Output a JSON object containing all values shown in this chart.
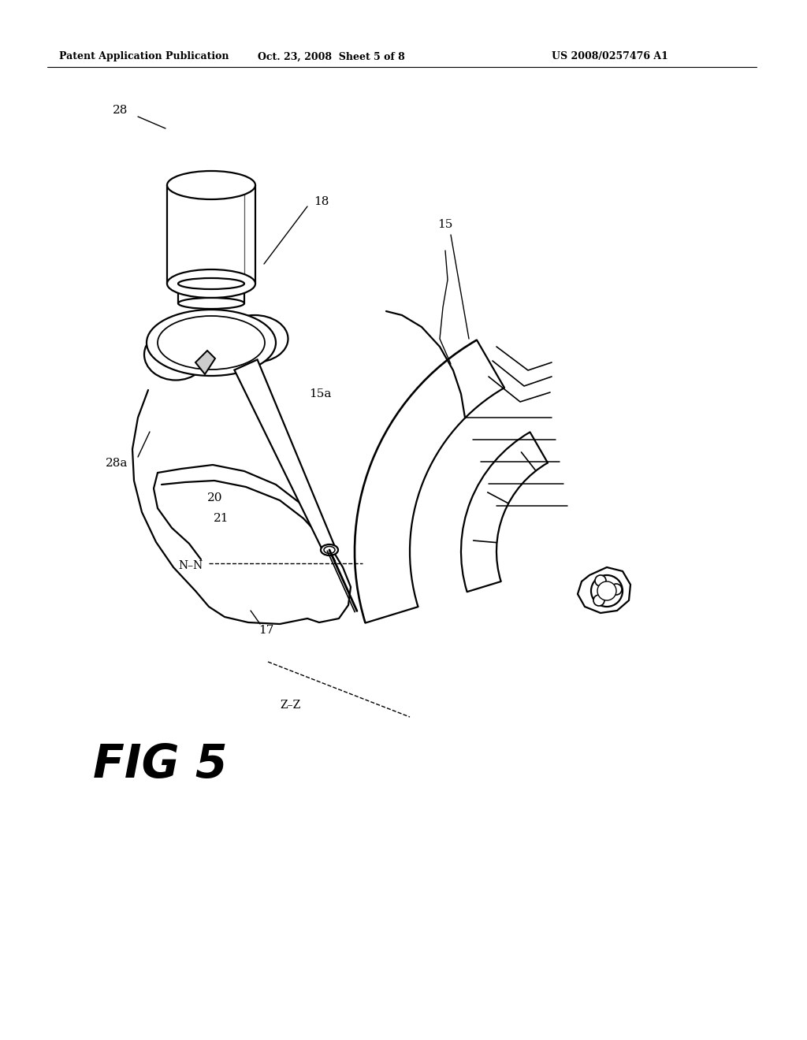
{
  "header_left": "Patent Application Publication",
  "header_mid": "Oct. 23, 2008  Sheet 5 of 8",
  "header_right": "US 2008/0257476 A1",
  "fig_label": "FIG 5",
  "bg_color": "#ffffff",
  "line_color": "#000000",
  "lw": 1.6
}
